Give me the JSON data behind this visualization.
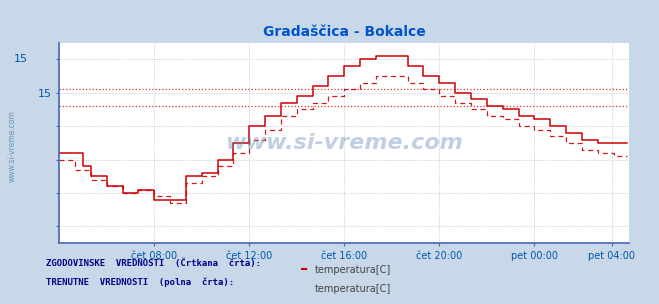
{
  "title": "Gradaščica - Bokalce",
  "title_color": "#0055cc",
  "bg_color": "#c8d8e8",
  "plot_bg_color": "#ffffff",
  "x_label_color": "#0055aa",
  "y_label_color": "#0055aa",
  "axis_color": "#4466bb",
  "grid_color": "#bbbbcc",
  "watermark": "www.si-vreme.com",
  "watermark_color": "#6688bb",
  "legend_label1": "ZGODOVINSKE  VREDNOSTI  (Črtkana  črta):",
  "legend_label2": "TRENUTNE  VREDNOSTI  (polna  črta):",
  "legend_item": "temperatura[C]",
  "ylim_min": 10.5,
  "ylim_max": 16.5,
  "ytick_positions": [
    11,
    12,
    13,
    14,
    15,
    16
  ],
  "ytick_labels_left": [
    "",
    "",
    "",
    "",
    "15",
    ""
  ],
  "ytick_label_top": "15",
  "hlines": [
    14.6,
    15.1
  ],
  "x_tick_labels": [
    "čet 08:00",
    "čet 12:00",
    "čet 16:00",
    "čet 20:00",
    "pet 00:00",
    "pet 04:00"
  ],
  "x_tick_positions": [
    48,
    96,
    144,
    192,
    240,
    279
  ],
  "xlim_max": 288,
  "solid_color": "#cc0000",
  "dashed_color": "#cc0000",
  "n_points": 288,
  "solid_y": [
    13.2,
    13.2,
    13.2,
    12.8,
    12.5,
    12.5,
    12.2,
    12.2,
    12.0,
    12.0,
    12.1,
    12.1,
    11.8,
    11.8,
    11.8,
    11.8,
    12.5,
    12.5,
    12.6,
    12.6,
    13.0,
    13.0,
    13.5,
    13.5,
    14.0,
    14.0,
    14.3,
    14.3,
    14.7,
    14.7,
    14.9,
    14.9,
    15.2,
    15.2,
    15.5,
    15.5,
    15.8,
    15.8,
    16.0,
    16.0,
    16.1,
    16.1,
    16.1,
    16.1,
    15.8,
    15.8,
    15.5,
    15.5,
    15.3,
    15.3,
    15.0,
    15.0,
    14.8,
    14.8,
    14.6,
    14.6,
    14.5,
    14.5,
    14.3,
    14.3,
    14.2,
    14.2,
    14.0,
    14.0,
    13.8,
    13.8,
    13.6,
    13.6,
    13.5,
    13.5,
    13.5,
    13.5
  ],
  "dashed_y": [
    13.0,
    13.0,
    12.7,
    12.7,
    12.4,
    12.4,
    12.2,
    12.2,
    12.0,
    12.0,
    12.1,
    12.1,
    11.9,
    11.9,
    11.7,
    11.7,
    12.3,
    12.3,
    12.5,
    12.5,
    12.8,
    12.8,
    13.2,
    13.2,
    13.6,
    13.6,
    13.9,
    13.9,
    14.3,
    14.3,
    14.5,
    14.5,
    14.7,
    14.7,
    14.9,
    14.9,
    15.1,
    15.1,
    15.3,
    15.3,
    15.5,
    15.5,
    15.5,
    15.5,
    15.3,
    15.3,
    15.1,
    15.1,
    14.9,
    14.9,
    14.7,
    14.7,
    14.5,
    14.5,
    14.3,
    14.3,
    14.2,
    14.2,
    14.0,
    14.0,
    13.9,
    13.9,
    13.7,
    13.7,
    13.5,
    13.5,
    13.3,
    13.3,
    13.2,
    13.2,
    13.1,
    13.1
  ],
  "n_compact": 72
}
